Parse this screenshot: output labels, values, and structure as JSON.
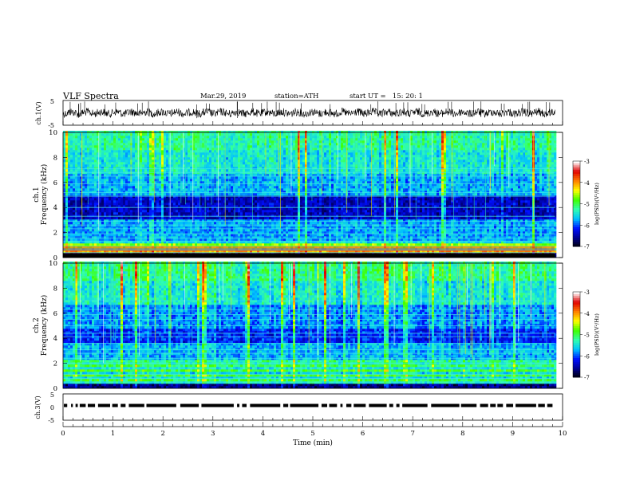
{
  "header": {
    "title": "VLF Spectra",
    "date": "Mar.29, 2019",
    "station": "station=ATH",
    "start": "start UT =   15: 20: 1"
  },
  "chart_data": [
    {
      "type": "line",
      "panel": "ch1-waveform",
      "ylabel": "ch.1(V)",
      "ylim": [
        -5,
        5
      ],
      "yticks": [
        "5",
        "-5"
      ],
      "x_range": [
        0,
        9.85
      ],
      "baseline": 0,
      "color": "#000000"
    },
    {
      "type": "heatmap",
      "panel": "ch1-spectrogram",
      "ylabel_top": "ch.1",
      "ylabel": "Frequency (kHz)",
      "ylim": [
        0,
        10
      ],
      "yticks": [
        "0",
        "2",
        "4",
        "6",
        "8",
        "10"
      ],
      "x_range": [
        0,
        9.85
      ],
      "value_label": "log(PSD)(V²/Hz)",
      "colorbar_ticks": [
        "-3",
        "-4",
        "-5",
        "-6",
        "-7"
      ],
      "colorbar_range": [
        -7,
        -3
      ]
    },
    {
      "type": "heatmap",
      "panel": "ch2-spectrogram",
      "ylabel_top": "ch.2",
      "ylabel": "Frequency (kHz)",
      "ylim": [
        0,
        10
      ],
      "yticks": [
        "0",
        "2",
        "4",
        "6",
        "8",
        "10"
      ],
      "x_range": [
        0,
        9.85
      ],
      "value_label": "log(PSD)(V²/Hz)",
      "colorbar_ticks": [
        "-3",
        "-4",
        "-5",
        "-6",
        "-7"
      ],
      "colorbar_range": [
        -7,
        -3
      ]
    },
    {
      "type": "line",
      "panel": "ch3-pulses",
      "ylabel": "ch.3(V)",
      "ylim": [
        -5,
        5
      ],
      "yticks": [
        "5",
        "0",
        "-5"
      ],
      "x_range": [
        0,
        9.85
      ],
      "pulse_level": 0,
      "color": "#000000"
    }
  ],
  "xaxis": {
    "label": "Time (min)",
    "xlim": [
      0,
      10
    ],
    "ticks": [
      "0",
      "1",
      "2",
      "3",
      "4",
      "5",
      "6",
      "7",
      "8",
      "9",
      "10"
    ]
  },
  "colors": {
    "colormap": [
      "#000000",
      "#000090",
      "#0010ff",
      "#00c0ff",
      "#30ffb0",
      "#40ff00",
      "#ffff00",
      "#ff8000",
      "#e00000",
      "#ffffff"
    ]
  }
}
